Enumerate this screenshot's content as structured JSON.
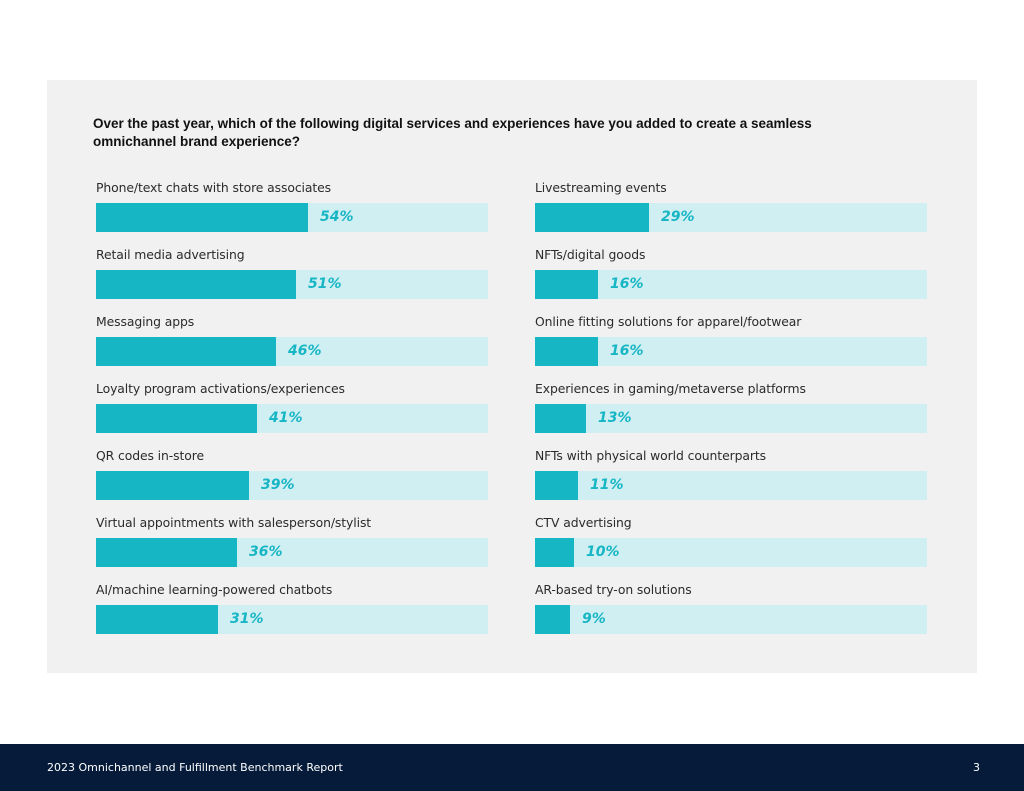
{
  "question": "Over the past year, which of the following digital services and experiences have you added to create a seamless omnichannel brand experience?",
  "colors": {
    "panel": "#f1f1f1",
    "bar_fill": "#17b6c4",
    "bar_track": "#cfeff3",
    "footer": "#061b3a"
  },
  "chart_data": [
    {
      "type": "bar",
      "orientation": "horizontal",
      "unit": "%",
      "xlim": [
        0,
        100
      ],
      "grid": false,
      "categories": [
        "Phone/text chats with store associates",
        "Retail media advertising",
        "Messaging apps",
        "Loyalty program activations/experiences",
        "QR codes in-store",
        "Virtual appointments with salesperson/stylist",
        "AI/machine learning-powered chatbots"
      ],
      "values": [
        54,
        51,
        46,
        41,
        39,
        36,
        31
      ],
      "labels": [
        "54%",
        "51%",
        "46%",
        "41%",
        "39%",
        "36%",
        "31%"
      ]
    },
    {
      "type": "bar",
      "orientation": "horizontal",
      "unit": "%",
      "xlim": [
        0,
        100
      ],
      "grid": false,
      "categories": [
        "Livestreaming events",
        "NFTs/digital goods",
        "Online fitting solutions for apparel/footwear",
        "Experiences in gaming/metaverse platforms",
        "NFTs with physical world counterparts",
        "CTV advertising",
        "AR-based try-on solutions"
      ],
      "values": [
        29,
        16,
        16,
        13,
        11,
        10,
        9
      ],
      "labels": [
        "29%",
        "16%",
        "16%",
        "13%",
        "11%",
        "10%",
        "9%"
      ]
    }
  ],
  "footer": {
    "title": "2023 Omnichannel and Fulfillment Benchmark Report",
    "page": "3"
  }
}
